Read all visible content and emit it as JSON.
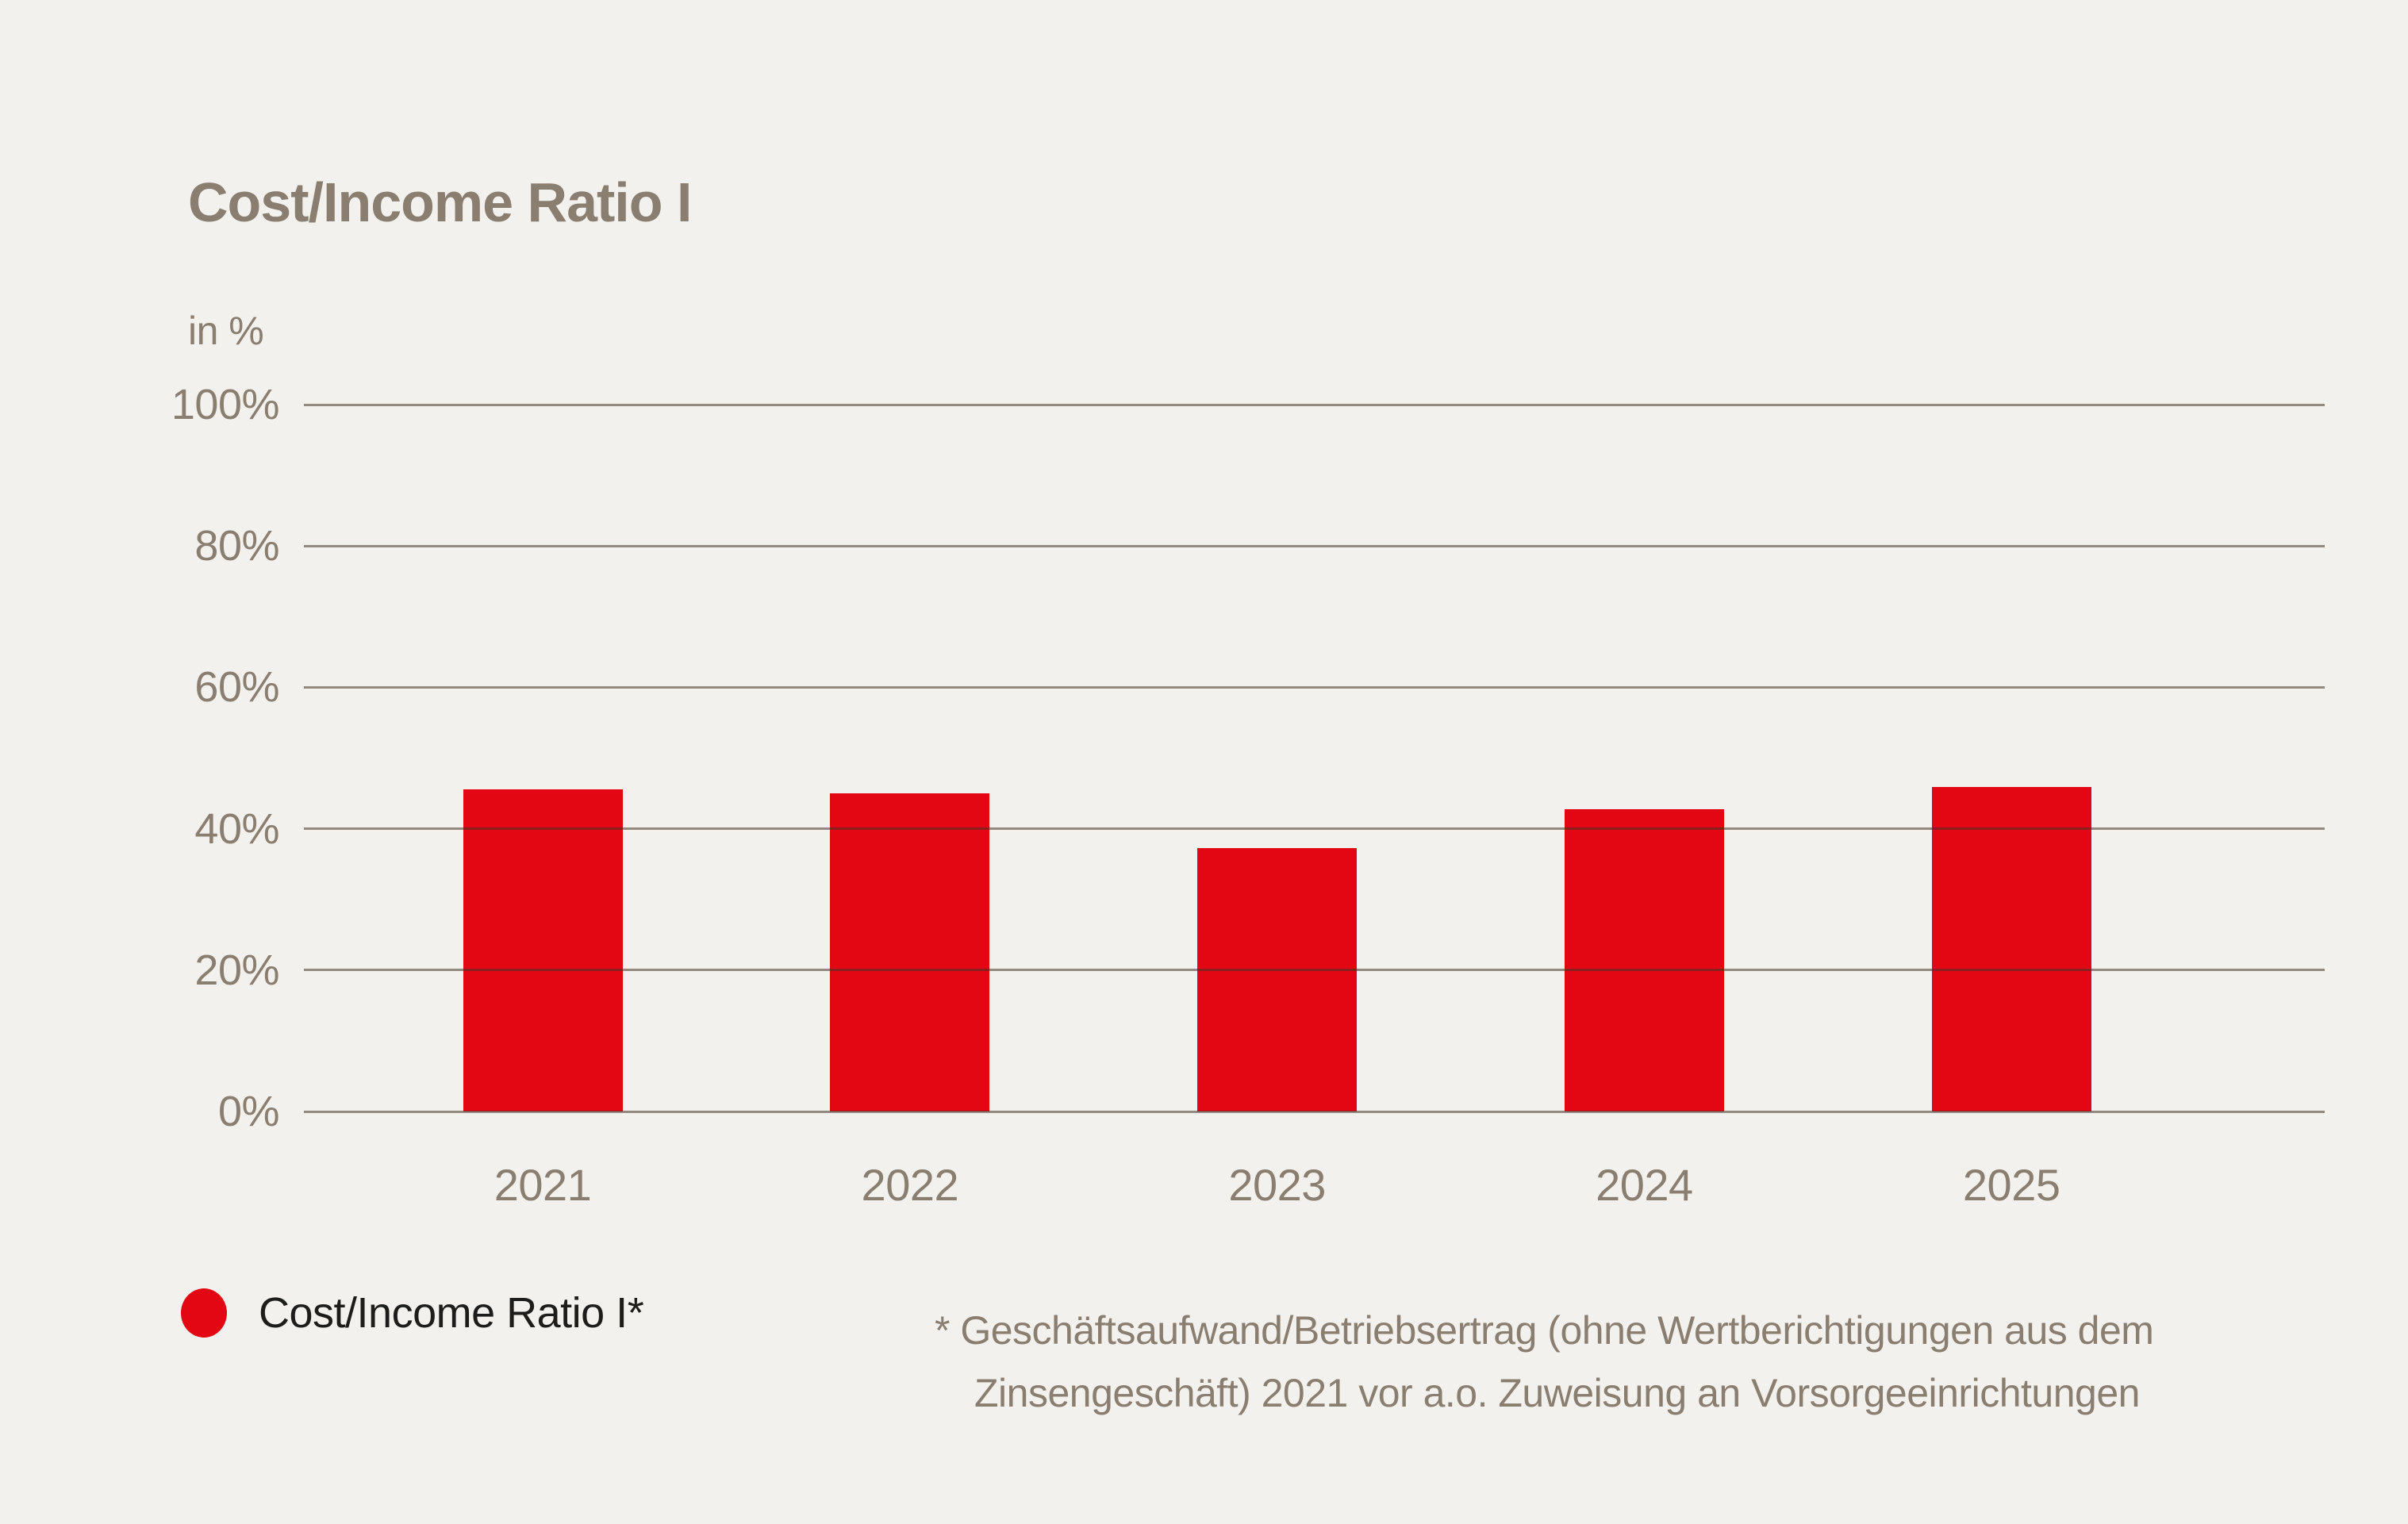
{
  "page": {
    "background_color": "#f2f1ed",
    "text_color_taupe": "#8a7e71",
    "text_color_dark": "#1d1d1b"
  },
  "header": {
    "title": "Cost/Income Ratio I",
    "unit_label": "in %"
  },
  "legend": {
    "marker_color": "#e30613",
    "label": "Cost/Income Ratio I*"
  },
  "footnote": {
    "line1": "* Geschäftsaufwand/Betriebsertrag (ohne Wertberichtigungen aus dem",
    "line2": "Zinsengeschäft) 2021 vor a.o. Zuweisung an Vorsorgeeinrichtungen"
  },
  "chart_data": {
    "type": "bar",
    "title": "Cost/Income Ratio I",
    "categories": [
      "2021",
      "2022",
      "2023",
      "2024",
      "2025"
    ],
    "series": [
      {
        "name": "Cost/Income Ratio I*",
        "values": [
          45.6,
          45.0,
          37.3,
          42.8,
          45.9
        ]
      }
    ],
    "bar_color": "#e30613",
    "xlabel": "",
    "ylabel": "in %",
    "ylim": [
      0,
      100
    ],
    "yticks": [
      0,
      20,
      40,
      60,
      80,
      100
    ],
    "ytick_labels": [
      "0%",
      "20%",
      "40%",
      "60%",
      "80%",
      "100%"
    ],
    "grid": true,
    "gridlines_over_bars": true,
    "legend_position": "bottom-left"
  }
}
